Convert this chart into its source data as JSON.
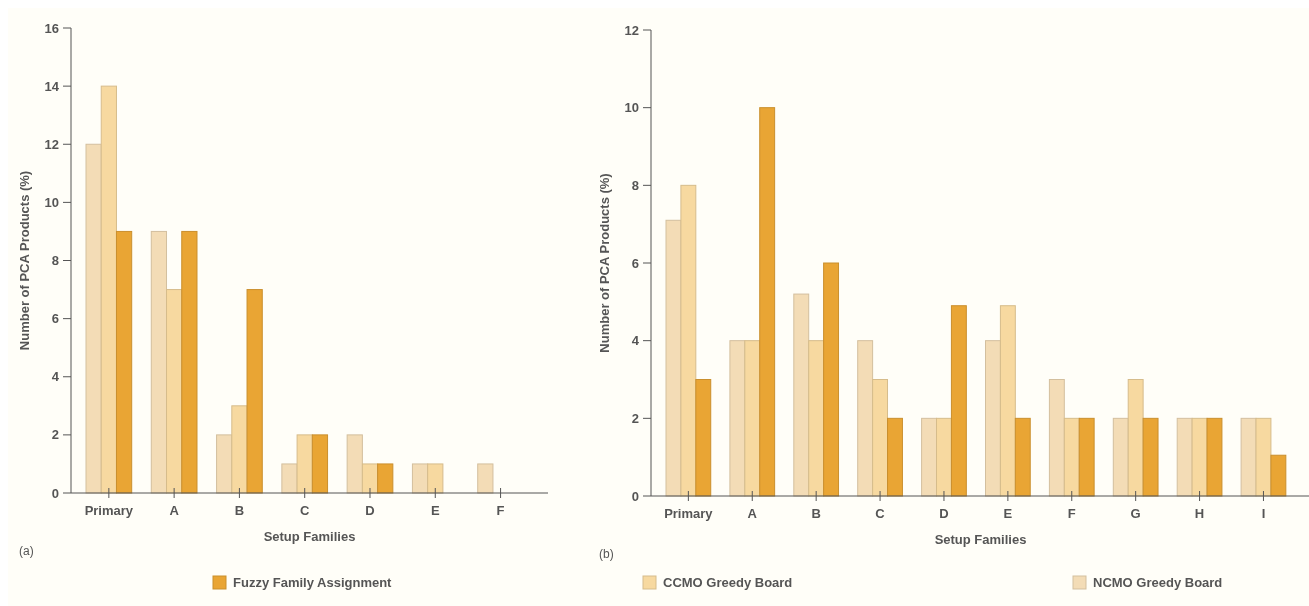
{
  "chart_data": [
    {
      "type": "bar",
      "xlabel": "Setup Families",
      "ylabel": "Number of PCA Products (%)",
      "annotations": [
        "(a)"
      ],
      "categories": [
        "Primary",
        "A",
        "B",
        "C",
        "D",
        "E",
        "F"
      ],
      "series": [
        {
          "name": "NCMO Greedy Board",
          "color": "#f3dcb6",
          "values": [
            12,
            9,
            2,
            1,
            2,
            1,
            1
          ]
        },
        {
          "name": "CCMO Greedy Board",
          "color": "#f7d9a0",
          "values": [
            14,
            7,
            3,
            2,
            1,
            1,
            null
          ]
        },
        {
          "name": "Fuzzy Family Assignment",
          "color": "#e9a534",
          "values": [
            9,
            9,
            7,
            2,
            1,
            null,
            null
          ]
        }
      ],
      "ylim": [
        0,
        16
      ],
      "yticks": [
        0,
        2,
        4,
        6,
        8,
        10,
        12,
        14,
        16
      ],
      "legend": "bottom"
    },
    {
      "type": "bar",
      "xlabel": "Setup Families",
      "ylabel": "Number of PCA Products (%)",
      "annotations": [
        "(b)"
      ],
      "categories": [
        "Primary",
        "A",
        "B",
        "C",
        "D",
        "E",
        "F",
        "G",
        "H",
        "I"
      ],
      "series": [
        {
          "color": "#f3dcb6",
          "values": [
            7.1,
            4,
            5.2,
            4,
            2,
            4,
            3,
            2,
            2,
            2
          ]
        },
        {
          "color": "#f7d9a0",
          "values": [
            8,
            4,
            4,
            3,
            2,
            4.9,
            2,
            3,
            2,
            2
          ]
        },
        {
          "color": "#e9a534",
          "values": [
            3,
            10,
            6,
            2,
            4.9,
            2,
            2,
            2,
            2,
            1.05
          ]
        }
      ],
      "ylim": [
        0,
        12
      ],
      "yticks": [
        0,
        2,
        4,
        6,
        8,
        10,
        12
      ]
    }
  ]
}
